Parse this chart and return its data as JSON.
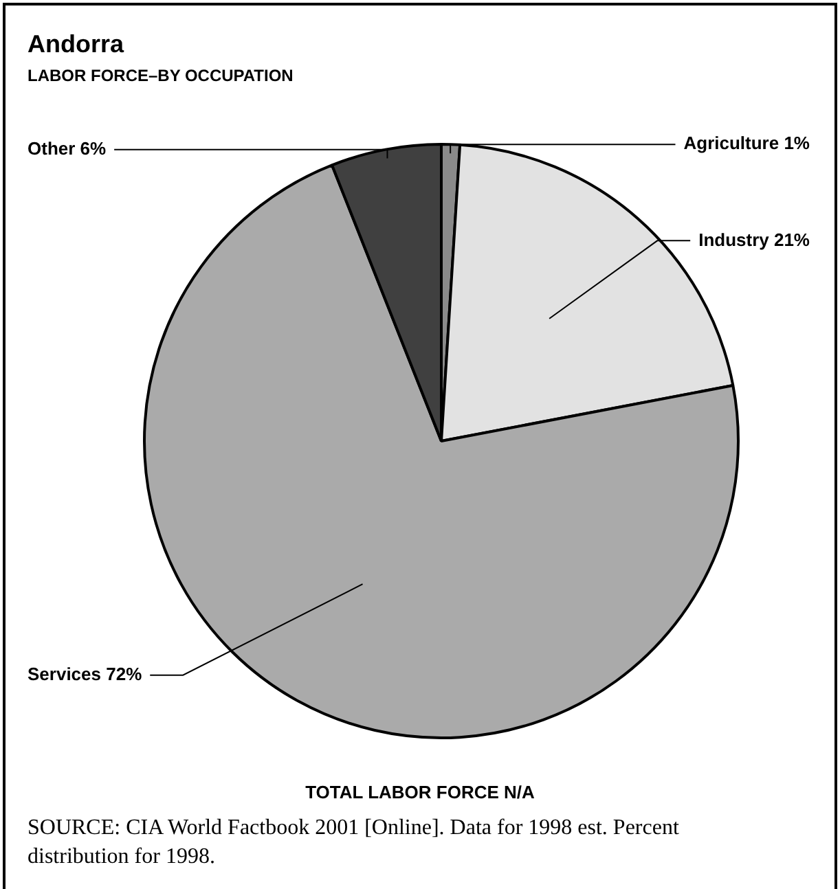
{
  "chart_data": {
    "type": "pie",
    "title": "Andorra",
    "subtitle": "LABOR FORCE–BY OCCUPATION",
    "categories": [
      "Agriculture",
      "Industry",
      "Services",
      "Other"
    ],
    "values": [
      1,
      21,
      72,
      6
    ],
    "colors": [
      "#8a8a8a",
      "#e2e2e2",
      "#aaaaaa",
      "#404040"
    ],
    "value_labels": [
      "1%",
      "21%",
      "72%",
      "6%"
    ],
    "annotations": [
      "TOTAL LABOR FORCE N/A",
      "SOURCE: CIA World Factbook 2001 [Online]. Data for 1998 est. Percent distribution for 1998."
    ]
  }
}
